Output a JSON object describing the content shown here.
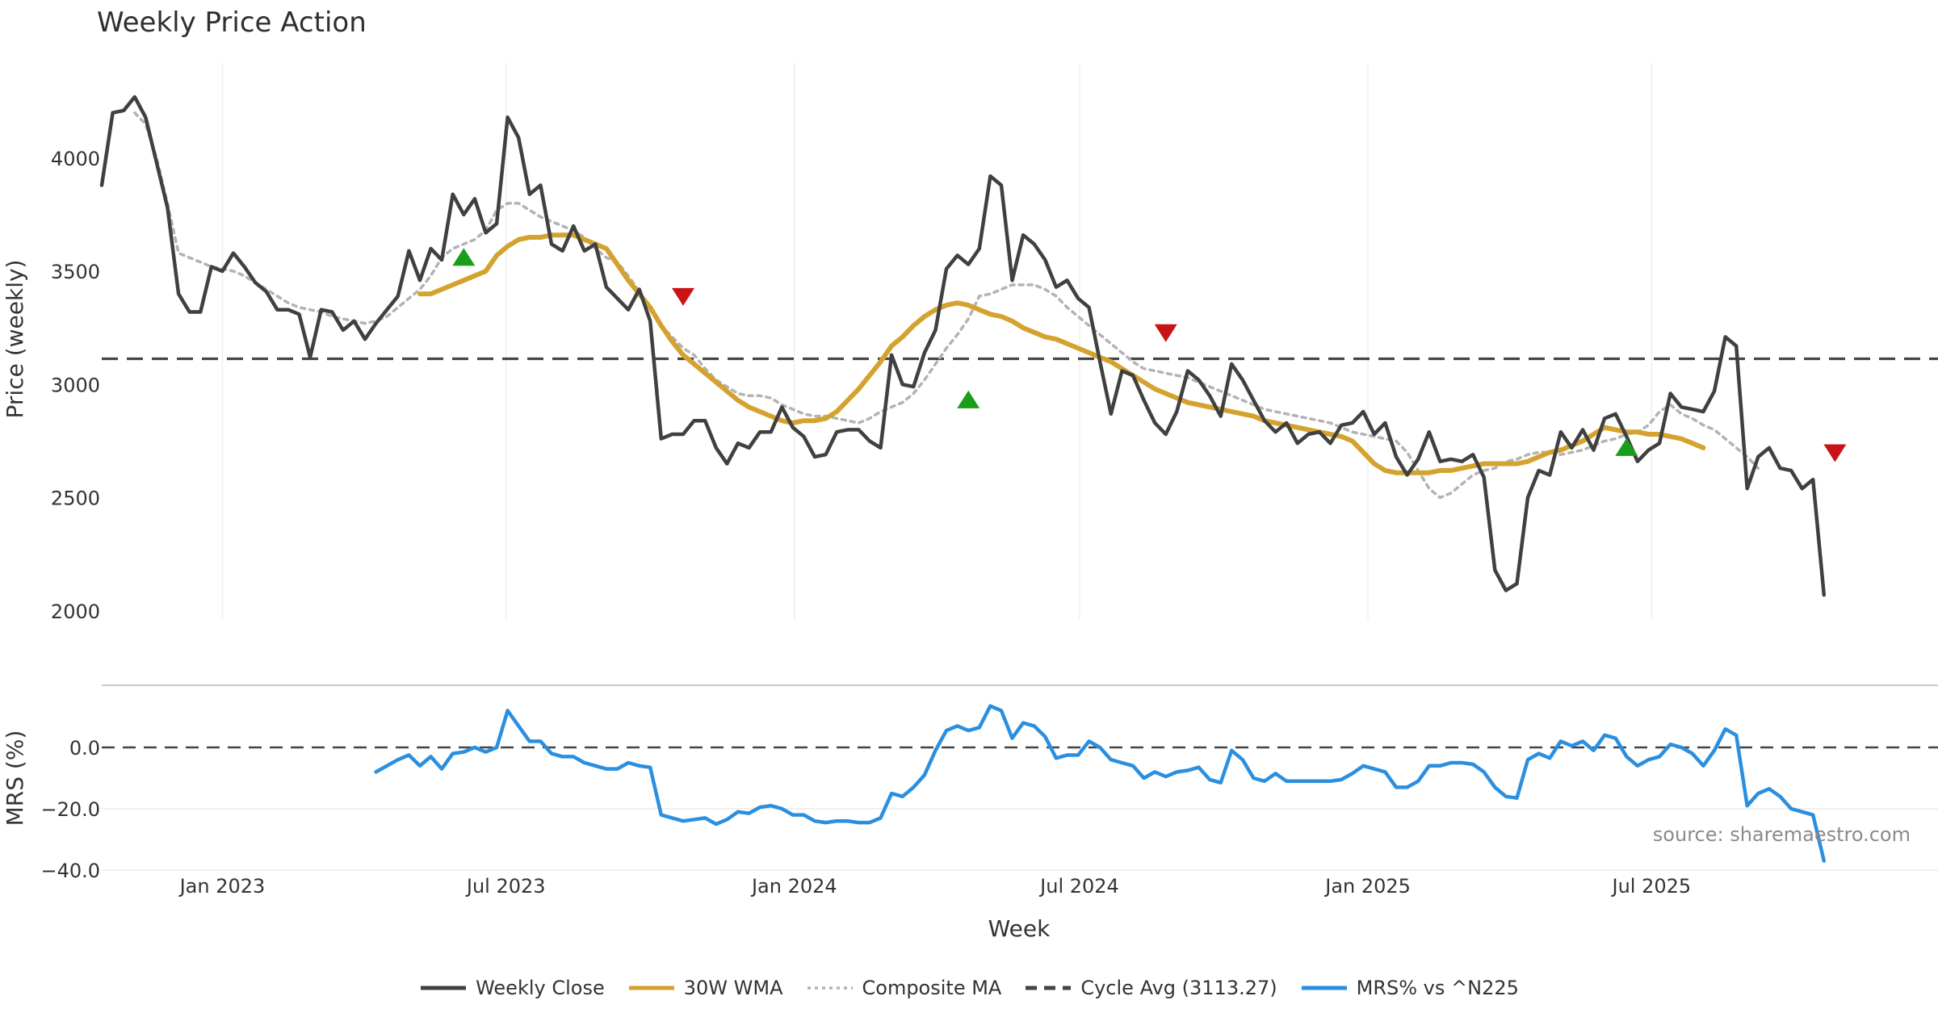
{
  "chart_data": {
    "type": "line",
    "title": "Weekly Price Action",
    "source": "source: sharemaestro.com",
    "xlabel": "Week",
    "x_ticks": [
      {
        "label": "Jan 2023",
        "date": "2023-01-01"
      },
      {
        "label": "Jul 2023",
        "date": "2023-07-01"
      },
      {
        "label": "Jan 2024",
        "date": "2024-01-01"
      },
      {
        "label": "Jul 2024",
        "date": "2024-07-01"
      },
      {
        "label": "Jan 2025",
        "date": "2025-01-01"
      },
      {
        "label": "Jul 2025",
        "date": "2025-07-01"
      }
    ],
    "x_start": "2022-10-16",
    "x_end": "2025-11-02",
    "price_panel": {
      "ylabel": "Price (weekly)",
      "ylim": [
        1960,
        4420
      ],
      "y_ticks": [
        "2000",
        "2500",
        "3000",
        "3500",
        "4000"
      ],
      "series": [
        {
          "name": "Weekly Close",
          "color": "#404040",
          "dash": "solid",
          "start": "2022-10-16",
          "values": [
            3880,
            4200,
            4210,
            4270,
            4180,
            3980,
            3780,
            3400,
            3320,
            3320,
            3520,
            3500,
            3580,
            3520,
            3450,
            3410,
            3330,
            3330,
            3310,
            3120,
            3330,
            3320,
            3240,
            3280,
            3200,
            3270,
            3330,
            3390,
            3590,
            3460,
            3600,
            3550,
            3840,
            3750,
            3820,
            3670,
            3710,
            4180,
            4090,
            3840,
            3880,
            3620,
            3590,
            3700,
            3590,
            3620,
            3430,
            3380,
            3330,
            3420,
            3280,
            2760,
            2780,
            2780,
            2840,
            2840,
            2720,
            2650,
            2740,
            2720,
            2790,
            2790,
            2900,
            2810,
            2770,
            2680,
            2690,
            2790,
            2800,
            2800,
            2750,
            2720,
            3130,
            3000,
            2990,
            3140,
            3240,
            3510,
            3570,
            3530,
            3600,
            3920,
            3880,
            3460,
            3660,
            3620,
            3550,
            3430,
            3460,
            3380,
            3340,
            3100,
            2870,
            3060,
            3040,
            2930,
            2830,
            2780,
            2880,
            3060,
            3020,
            2950,
            2860,
            3090,
            3020,
            2930,
            2840,
            2790,
            2830,
            2740,
            2780,
            2790,
            2740,
            2820,
            2830,
            2880,
            2780,
            2830,
            2680,
            2600,
            2670,
            2790,
            2660,
            2670,
            2660,
            2690,
            2590,
            2180,
            2090,
            2120,
            2500,
            2620,
            2600,
            2790,
            2720,
            2800,
            2710,
            2850,
            2870,
            2770,
            2660,
            2710,
            2740,
            2960,
            2900,
            2890,
            2880,
            2970,
            3210,
            3170,
            2540,
            2680,
            2720,
            2630,
            2620,
            2540,
            2580,
            2070
          ]
        },
        {
          "name": "30W WMA",
          "color": "#D4A22E",
          "dash": "solid",
          "start": "2023-05-07",
          "values": [
            3400,
            3400,
            3420,
            3440,
            3460,
            3480,
            3500,
            3570,
            3610,
            3640,
            3650,
            3650,
            3660,
            3660,
            3660,
            3640,
            3620,
            3600,
            3530,
            3460,
            3400,
            3340,
            3260,
            3190,
            3130,
            3090,
            3050,
            3010,
            2970,
            2930,
            2900,
            2880,
            2860,
            2840,
            2830,
            2840,
            2840,
            2850,
            2880,
            2930,
            2980,
            3040,
            3100,
            3170,
            3210,
            3260,
            3300,
            3330,
            3350,
            3360,
            3350,
            3330,
            3310,
            3300,
            3280,
            3250,
            3230,
            3210,
            3200,
            3180,
            3160,
            3140,
            3120,
            3100,
            3070,
            3040,
            3010,
            2980,
            2960,
            2940,
            2920,
            2910,
            2900,
            2890,
            2880,
            2870,
            2860,
            2840,
            2830,
            2820,
            2810,
            2800,
            2790,
            2780,
            2770,
            2750,
            2700,
            2650,
            2620,
            2610,
            2610,
            2610,
            2610,
            2620,
            2620,
            2630,
            2640,
            2650,
            2650,
            2650,
            2650,
            2660,
            2680,
            2700,
            2710,
            2730,
            2750,
            2780,
            2810,
            2800,
            2790,
            2790,
            2780,
            2780,
            2770,
            2760,
            2740,
            2720
          ]
        },
        {
          "name": "Composite MA",
          "color": "#b3b3b3",
          "dash": "dotted",
          "start": "2022-11-06",
          "values": [
            4200,
            4150,
            4000,
            3800,
            3580,
            3560,
            3540,
            3520,
            3510,
            3500,
            3480,
            3450,
            3420,
            3390,
            3360,
            3340,
            3330,
            3320,
            3300,
            3290,
            3280,
            3270,
            3280,
            3300,
            3340,
            3380,
            3420,
            3480,
            3560,
            3600,
            3620,
            3640,
            3680,
            3770,
            3800,
            3800,
            3770,
            3740,
            3720,
            3700,
            3680,
            3650,
            3600,
            3560,
            3540,
            3480,
            3410,
            3330,
            3260,
            3210,
            3160,
            3130,
            3070,
            3020,
            2990,
            2960,
            2950,
            2950,
            2940,
            2910,
            2890,
            2870,
            2860,
            2860,
            2850,
            2840,
            2830,
            2850,
            2880,
            2900,
            2920,
            2960,
            3020,
            3090,
            3160,
            3220,
            3290,
            3390,
            3400,
            3420,
            3440,
            3440,
            3440,
            3420,
            3390,
            3340,
            3300,
            3260,
            3220,
            3180,
            3140,
            3100,
            3070,
            3060,
            3050,
            3040,
            3030,
            3010,
            2990,
            2970,
            2950,
            2930,
            2910,
            2890,
            2880,
            2870,
            2860,
            2850,
            2840,
            2830,
            2810,
            2790,
            2780,
            2770,
            2760,
            2750,
            2700,
            2620,
            2540,
            2500,
            2520,
            2560,
            2600,
            2620,
            2630,
            2660,
            2670,
            2690,
            2700,
            2700,
            2690,
            2700,
            2710,
            2730,
            2750,
            2760,
            2780,
            2790,
            2820,
            2880,
            2910,
            2870,
            2850,
            2820,
            2800,
            2760,
            2720,
            2680,
            2630
          ]
        }
      ],
      "cycle_avg": {
        "name": "Cycle Avg (3113.27)",
        "value": 3113.27,
        "color": "#444444"
      },
      "buy_signals": [
        {
          "date": "2023-06-04",
          "value": 3560
        },
        {
          "date": "2024-04-21",
          "value": 2930
        },
        {
          "date": "2025-06-15",
          "value": 2720
        }
      ],
      "sell_signals": [
        {
          "date": "2023-10-22",
          "value": 3390
        },
        {
          "date": "2024-08-25",
          "value": 3230
        },
        {
          "date": "2025-10-26",
          "value": 2700
        }
      ]
    },
    "mrs_panel": {
      "ylabel": "MRS (%)",
      "ylim": [
        -40,
        20
      ],
      "y_ticks": [
        "0.0",
        "−20.0",
        "−40.0"
      ],
      "zero_line": 0,
      "series": {
        "name": "MRS% vs ^N225",
        "color": "#2B8FE0",
        "start": "2023-04-09",
        "values": [
          -8,
          -6,
          -4,
          -2.5,
          -6,
          -3,
          -7,
          -2,
          -1.5,
          0,
          -1.5,
          0,
          12,
          7,
          2,
          2,
          -2,
          -3,
          -3,
          -5,
          -6,
          -7,
          -7,
          -5,
          -6,
          -6.5,
          -22,
          -23,
          -24,
          -23.5,
          -23,
          -25,
          -23.5,
          -21,
          -21.5,
          -19.5,
          -19,
          -20,
          -22,
          -22,
          -24,
          -24.5,
          -24,
          -24,
          -24.5,
          -24.5,
          -23,
          -15,
          -16,
          -13,
          -9,
          -1,
          5.5,
          7,
          5.5,
          6.5,
          13.5,
          12,
          3,
          8,
          7,
          3.5,
          -3.5,
          -2.5,
          -2.5,
          2,
          0,
          -4,
          -5,
          -6,
          -10,
          -8,
          -9.5,
          -8,
          -7.5,
          -6.5,
          -10.5,
          -11.5,
          -1,
          -4,
          -10,
          -11,
          -8.5,
          -11,
          -11,
          -11,
          -11,
          -11,
          -10.5,
          -8.5,
          -6,
          -7,
          -8,
          -13,
          -13,
          -11,
          -6,
          -6,
          -5,
          -5,
          -5.5,
          -8,
          -13,
          -16,
          -16.5,
          -4,
          -2,
          -3.5,
          2,
          0.5,
          2,
          -1,
          4,
          3,
          -3,
          -6,
          -4,
          -3,
          1,
          0,
          -2,
          -6,
          -1,
          6,
          4,
          -19,
          -15,
          -13.5,
          -16,
          -20,
          -21,
          -22,
          -37
        ]
      }
    }
  },
  "legend": [
    {
      "label": "Weekly Close",
      "color": "#404040",
      "style": "solid"
    },
    {
      "label": "30W WMA",
      "color": "#D4A22E",
      "style": "solid"
    },
    {
      "label": "Composite MA",
      "color": "#b3b3b3",
      "style": "dotted"
    },
    {
      "label": "Cycle Avg (3113.27)",
      "color": "#444444",
      "style": "dashed"
    },
    {
      "label": "MRS% vs ^N225",
      "color": "#2B8FE0",
      "style": "solid"
    }
  ]
}
